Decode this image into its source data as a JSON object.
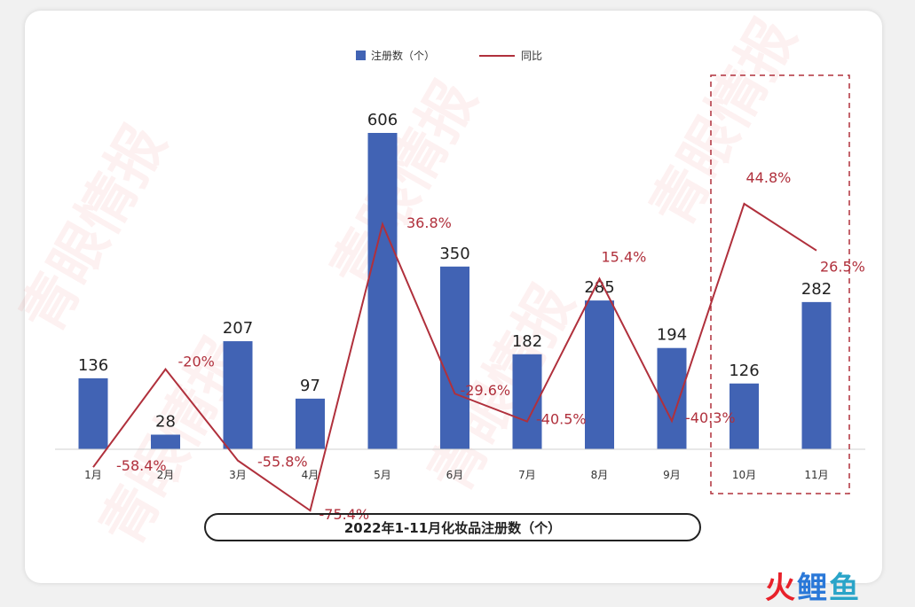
{
  "chart_data": {
    "type": "bar",
    "categories": [
      "1月",
      "2月",
      "3月",
      "4月",
      "5月",
      "6月",
      "7月",
      "8月",
      "9月",
      "10月",
      "11月"
    ],
    "series": [
      {
        "name": "注册数（个）",
        "type": "bar",
        "values": [
          136,
          28,
          207,
          97,
          606,
          350,
          182,
          285,
          194,
          126,
          282
        ],
        "color": "#4163b4"
      },
      {
        "name": "同比",
        "type": "line",
        "values": [
          -58.4,
          -20,
          -55.8,
          -75.4,
          36.8,
          -29.6,
          -40.5,
          15.4,
          -40.3,
          44.8,
          26.5
        ],
        "labels": [
          "-58.4%",
          "-20%",
          "-55.8%",
          "-75.4%",
          "36.8%",
          "-29.6%",
          "-40.5%",
          "15.4%",
          "-40.3%",
          "44.8%",
          "26.5%"
        ],
        "color": "#b0303c"
      }
    ],
    "title": "2022年1-11月化妆品注册数（个）",
    "highlight": [
      "10月",
      "11月"
    ],
    "legend": "top-center"
  },
  "brand": {
    "part1": "火",
    "part2": "鲤",
    "part3": "鱼"
  },
  "watermark": "青眼情报"
}
